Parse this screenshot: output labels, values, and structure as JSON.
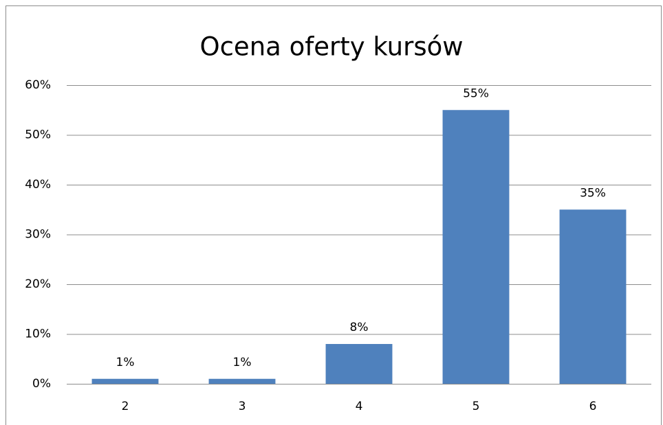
{
  "chart_data": {
    "type": "bar",
    "title": "Ocena oferty kursów",
    "categories": [
      "2",
      "3",
      "4",
      "5",
      "6"
    ],
    "values": [
      1,
      1,
      8,
      55,
      35
    ],
    "value_labels": [
      "1%",
      "1%",
      "8%",
      "55%",
      "35%"
    ],
    "color": "#4f81bd",
    "ylim": [
      0,
      60
    ],
    "yticks": [
      {
        "value": 0,
        "label": "0%"
      },
      {
        "value": 10,
        "label": "10%"
      },
      {
        "value": 20,
        "label": "20%"
      },
      {
        "value": 30,
        "label": "30%"
      },
      {
        "value": 40,
        "label": "40%"
      },
      {
        "value": 50,
        "label": "50%"
      },
      {
        "value": 60,
        "label": "60%"
      }
    ],
    "grid": true
  }
}
